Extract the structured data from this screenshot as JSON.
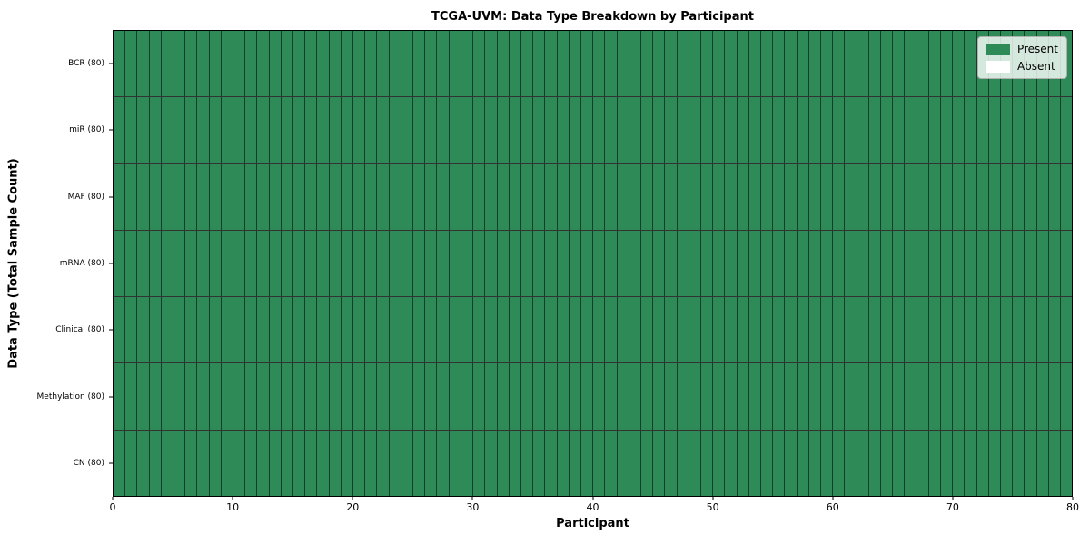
{
  "chart_data": {
    "type": "heatmap",
    "title": "TCGA-UVM: Data Type Breakdown by Participant",
    "xlabel": "Participant",
    "ylabel": "Data Type (Total Sample Count)",
    "xlim": [
      0,
      80
    ],
    "x_ticks": [
      0,
      10,
      20,
      30,
      40,
      50,
      60,
      70,
      80
    ],
    "n_participants": 80,
    "rows": [
      {
        "label": "BCR (80)",
        "present": 80,
        "absent": 0
      },
      {
        "label": "miR (80)",
        "present": 80,
        "absent": 0
      },
      {
        "label": "MAF (80)",
        "present": 80,
        "absent": 0
      },
      {
        "label": "mRNA (80)",
        "present": 80,
        "absent": 0
      },
      {
        "label": "Clinical (80)",
        "present": 80,
        "absent": 0
      },
      {
        "label": "Methylation (80)",
        "present": 80,
        "absent": 0
      },
      {
        "label": "CN (80)",
        "present": 80,
        "absent": 0
      }
    ],
    "legend": [
      {
        "label": "Present",
        "color": "#2e8b57"
      },
      {
        "label": "Absent",
        "color": "#ffffff"
      }
    ],
    "legend_position": "upper right",
    "colors": {
      "present": "#2e8b57",
      "absent": "#ffffff"
    },
    "grid": "cell outlines on every participant column and data type row"
  }
}
